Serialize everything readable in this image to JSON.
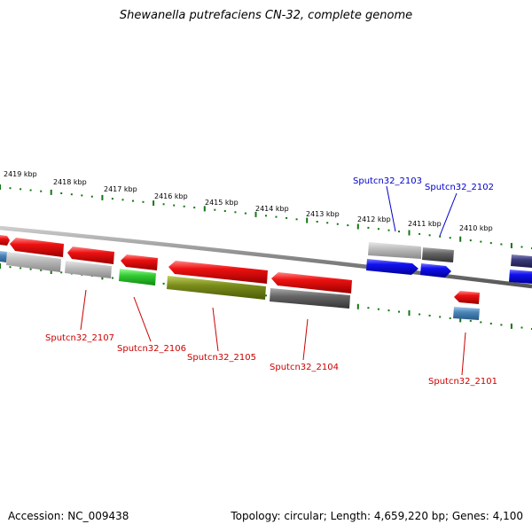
{
  "title": "Shewanella putrefaciens CN-32, complete genome",
  "footer": {
    "accession": "Accession: NC_009438",
    "topology": "Topology: circular; Length: 4,659,220 bp; Genes: 4,100"
  },
  "kbp_labels": [
    "2419 kbp",
    "2418 kbp",
    "2417 kbp",
    "2416 kbp",
    "2415 kbp",
    "2414 kbp",
    "2413 kbp",
    "2412 kbp",
    "2411 kbp",
    "2410 kbp"
  ],
  "gene_labels": {
    "Sputcn32_2107": "Sputcn32_2107",
    "Sputcn32_2106": "Sputcn32_2106",
    "Sputcn32_2105": "Sputcn32_2105",
    "Sputcn32_2104": "Sputcn32_2104",
    "Sputcn32_2103": "Sputcn32_2103",
    "Sputcn32_2102": "Sputcn32_2102",
    "Sputcn32_2101": "Sputcn32_2101"
  },
  "colors": {
    "red_gene": "#ee1111",
    "blue_gene": "#1111ee",
    "gray_gene": "#b8b8b8",
    "dark_gray_gene": "#666666",
    "green_gene": "#33cc33",
    "olive_gene": "#7a8c1a",
    "steel_blue_gene": "#4a86b8",
    "navy_gene": "#3a3a7a",
    "tick_green": "#117711",
    "backbone": "#888888"
  }
}
